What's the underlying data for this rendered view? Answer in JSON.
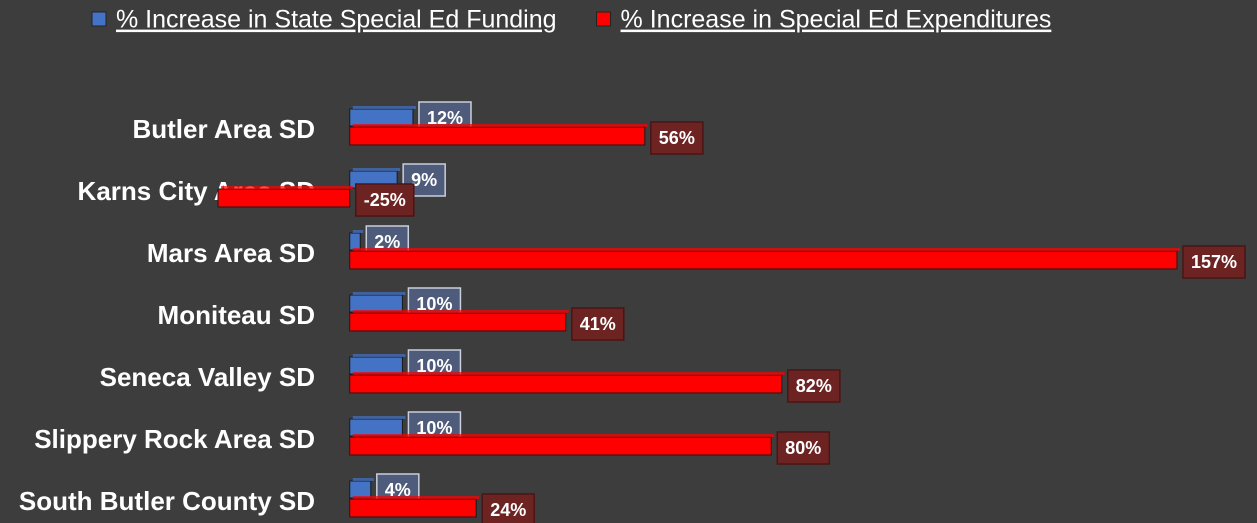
{
  "chart_data": {
    "type": "bar",
    "categories": [
      "Butler Area SD",
      "Karns City Area SD",
      "Mars Area SD",
      "Moniteau SD",
      "Seneca Valley SD",
      "Slippery Rock Area SD",
      "South Butler County SD"
    ],
    "series": [
      {
        "name": "% Increase in State Special Ed Funding",
        "color": "#4472c4",
        "values": [
          12,
          9,
          2,
          10,
          10,
          10,
          4
        ],
        "value_labels": [
          "12%",
          "9%",
          "2%",
          "10%",
          "10%",
          "10%",
          "4%"
        ]
      },
      {
        "name": "% Increase in Special Ed Expenditures",
        "color": "#ff0000",
        "values": [
          56,
          -25,
          157,
          41,
          82,
          80,
          24
        ],
        "value_labels": [
          "56%",
          "-25%",
          "157%",
          "41%",
          "82%",
          "80%",
          "24%"
        ]
      }
    ],
    "legend": "top"
  }
}
